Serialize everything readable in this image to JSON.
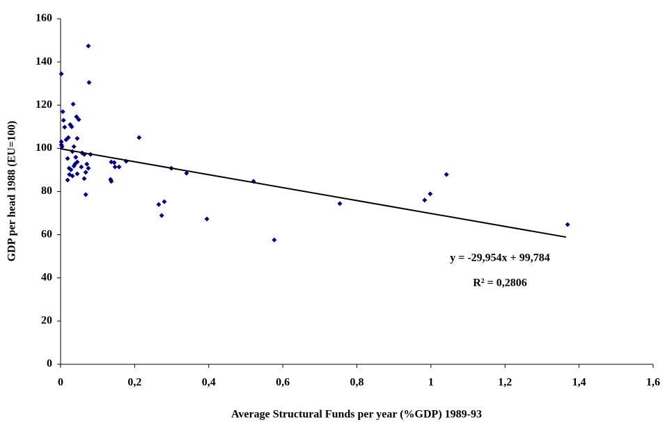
{
  "chart_data": {
    "type": "scatter",
    "x_label": "Average Structural Funds per year (%GDP) 1989-93",
    "y_label": "GDP per head 1988 (EU=100)",
    "color": "#000080",
    "xlim": [
      0,
      1.6
    ],
    "xticks": [
      0,
      {
        "value": 0.2,
        "label": "0,2"
      },
      {
        "value": 0.4,
        "label": "0,4"
      },
      {
        "value": 0.6,
        "label": "0,6"
      },
      {
        "value": 0.8,
        "label": "0,8"
      },
      1,
      {
        "value": 1.2,
        "label": "1,2"
      },
      {
        "value": 1.4,
        "label": "1,4"
      },
      {
        "value": 1.6,
        "label": "1,6"
      }
    ],
    "ylim": [
      0,
      160
    ],
    "yticks": [
      0,
      20,
      40,
      60,
      80,
      100,
      120,
      140,
      160
    ],
    "grid": false,
    "x": [
      0.002,
      0.075,
      0.077,
      0.006,
      0.008,
      0.034,
      0.002,
      0.011,
      0.002,
      0.004,
      0.015,
      0.021,
      0.026,
      0.03,
      0.043,
      0.049,
      0.045,
      0.036,
      0.019,
      0.032,
      0.041,
      0.039,
      0.045,
      0.058,
      0.064,
      0.068,
      0.064,
      0.056,
      0.023,
      0.028,
      0.036,
      0.024,
      0.032,
      0.019,
      0.045,
      0.071,
      0.075,
      0.081,
      0.068,
      0.135,
      0.137,
      0.137,
      0.145,
      0.147,
      0.158,
      0.177,
      0.212,
      0.299,
      0.34,
      0.265,
      0.28,
      0.273,
      0.395,
      0.521,
      0.577,
      0.754,
      0.983,
      0.998,
      1.042,
      1.369
    ],
    "values": [
      134.5,
      147.4,
      130.5,
      117,
      113,
      120.5,
      103,
      109.8,
      101.7,
      100.8,
      104,
      105,
      111,
      110,
      114.6,
      113.3,
      104.6,
      100.8,
      95.3,
      98.5,
      95.9,
      92.7,
      93.7,
      97.9,
      97.2,
      88.9,
      86,
      91.4,
      90.8,
      90.1,
      91.8,
      87.9,
      87.2,
      85.3,
      88.2,
      92.7,
      90.8,
      97.2,
      78.6,
      85.6,
      84.7,
      93.7,
      93.4,
      91.4,
      91.4,
      94,
      105,
      90.8,
      88.5,
      74,
      75.3,
      68.9,
      67.3,
      84.7,
      57.6,
      74.4,
      76,
      78.9,
      87.9,
      64.7
    ],
    "trendline": {
      "slope": -29.954,
      "intercept": 99.784,
      "x": [
        0,
        1.365
      ],
      "label": "y = -29,954x + 99,784",
      "r2_label": "R² = 0,2806"
    }
  }
}
